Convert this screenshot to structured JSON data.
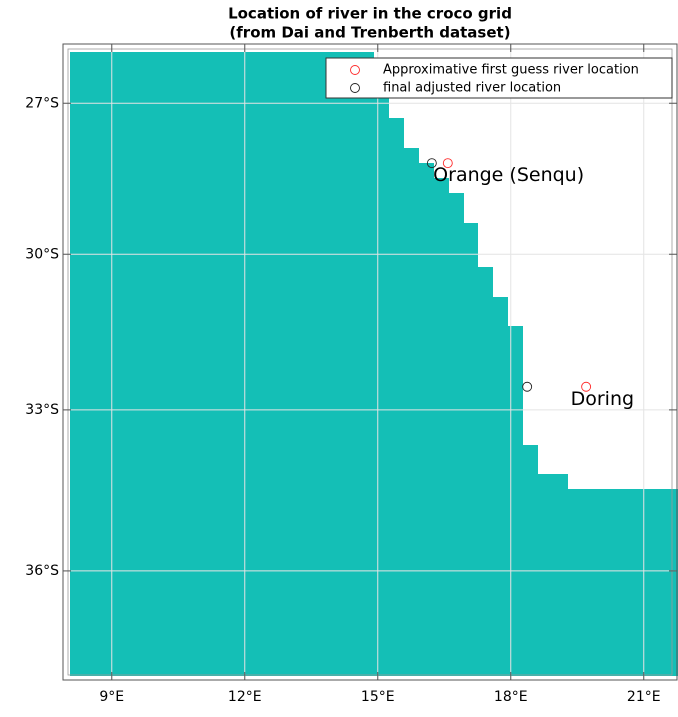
{
  "chart_data": {
    "type": "map",
    "title": "Location of river in the croco grid",
    "subtitle": "(from Dai and Trenberth dataset)",
    "xlim": [
      7.9,
      21.75
    ],
    "ylim": [
      -37.97,
      -25.8
    ],
    "xticks": [
      {
        "value": 9,
        "label": "9°E"
      },
      {
        "value": 12,
        "label": "12°E"
      },
      {
        "value": 15,
        "label": "15°E"
      },
      {
        "value": 18,
        "label": "18°E"
      },
      {
        "value": 21,
        "label": "21°E"
      }
    ],
    "yticks": [
      {
        "value": -27,
        "label": "27°S"
      },
      {
        "value": -30,
        "label": "30°S"
      },
      {
        "value": -33,
        "label": "33°S"
      },
      {
        "value": -36,
        "label": "36°S"
      }
    ],
    "grid": true,
    "projection": "mercator",
    "series": [
      {
        "name": "Approximative first guess river location",
        "color": "#ff2a2a",
        "x": [
          16.58,
          19.7
        ],
        "y": [
          -28.2,
          -32.56
        ]
      },
      {
        "name": "final adjusted river location",
        "color": "#222222",
        "x": [
          16.22,
          18.37
        ],
        "y": [
          -28.2,
          -32.56
        ]
      }
    ],
    "annotations": [
      {
        "text": "Orange (Senqu)",
        "x": 16.25,
        "y": -28.45
      },
      {
        "text": "Doring",
        "x": 19.35,
        "y": -32.8
      }
    ]
  }
}
